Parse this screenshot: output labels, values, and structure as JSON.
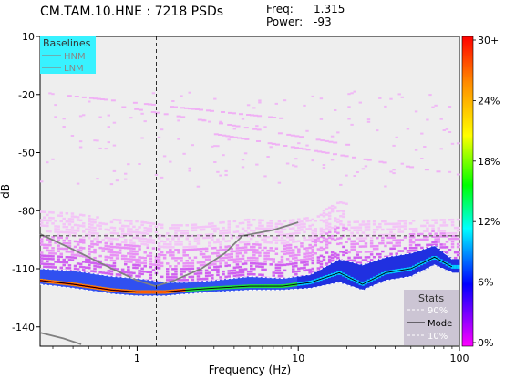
{
  "header": {
    "title": "CM.TAM.10.HNE : 7218 PSDs",
    "freq_label": "Freq:",
    "freq_value": "1.315",
    "power_label": "Power:",
    "power_value": "-93"
  },
  "chart_data": {
    "type": "heatmap",
    "title": "CM.TAM.10.HNE : 7218 PSDs",
    "xlabel": "Frequency (Hz)",
    "ylabel": "dB",
    "x_scale": "log",
    "xlim": [
      0.25,
      100
    ],
    "ylim": [
      -150,
      10
    ],
    "x_ticks": [
      1,
      10,
      100
    ],
    "y_ticks": [
      10,
      -20,
      -50,
      -80,
      -110,
      -140
    ],
    "crosshair": {
      "freq": 1.315,
      "power": -93
    },
    "colorbar": {
      "ticks": [
        "30+",
        "24%",
        "18%",
        "12%",
        "6%",
        "0%"
      ],
      "colors": [
        "#ff0000",
        "#ff8c00",
        "#ffff00",
        "#00ff00",
        "#00ffff",
        "#0000ff",
        "#ff00ff"
      ]
    },
    "legend_baselines": {
      "title": "Baselines",
      "entries": [
        "HNM",
        "LNM"
      ],
      "placement": "top-left"
    },
    "legend_stats": {
      "title": "Stats",
      "entries": [
        "90%",
        "Mode",
        "10%"
      ],
      "placement": "bottom-right"
    },
    "series": [
      {
        "name": "HNM",
        "x": [
          0.25,
          0.4,
          0.7,
          1.0,
          1.3,
          1.7,
          2.5,
          3.5,
          4.5,
          7,
          10
        ],
        "y": [
          -92,
          -100,
          -110,
          -116,
          -119,
          -116,
          -110,
          -102,
          -93,
          -90,
          -86
        ]
      },
      {
        "name": "LNM",
        "x": [
          0.25,
          0.35,
          0.45
        ],
        "y": [
          -143,
          -146,
          -149
        ]
      },
      {
        "name": "90%",
        "x": [
          0.25,
          0.4,
          0.7,
          1,
          1.5,
          2,
          3,
          5,
          8,
          12,
          18,
          25,
          35,
          50,
          70,
          90
        ],
        "y": [
          -110,
          -111,
          -114,
          -115,
          -117,
          -117,
          -116,
          -114,
          -115,
          -113,
          -105,
          -108,
          -104,
          -102,
          -98,
          -105
        ]
      },
      {
        "name": "Mode",
        "x": [
          0.25,
          0.4,
          0.7,
          1,
          1.5,
          2,
          3,
          5,
          8,
          12,
          18,
          25,
          35,
          50,
          70,
          90
        ],
        "y": [
          -116,
          -118,
          -121,
          -122,
          -122,
          -121,
          -120,
          -119,
          -119,
          -117,
          -112,
          -118,
          -112,
          -110,
          -104,
          -109
        ]
      },
      {
        "name": "10%",
        "x": [
          0.25,
          0.4,
          0.7,
          1,
          1.5,
          2,
          3,
          5,
          8,
          12,
          18,
          25,
          35,
          50,
          70,
          90
        ],
        "y": [
          -118,
          -120,
          -123,
          -124,
          -124,
          -123,
          -122,
          -121,
          -121,
          -120,
          -117,
          -121,
          -116,
          -114,
          -108,
          -112
        ]
      }
    ]
  }
}
